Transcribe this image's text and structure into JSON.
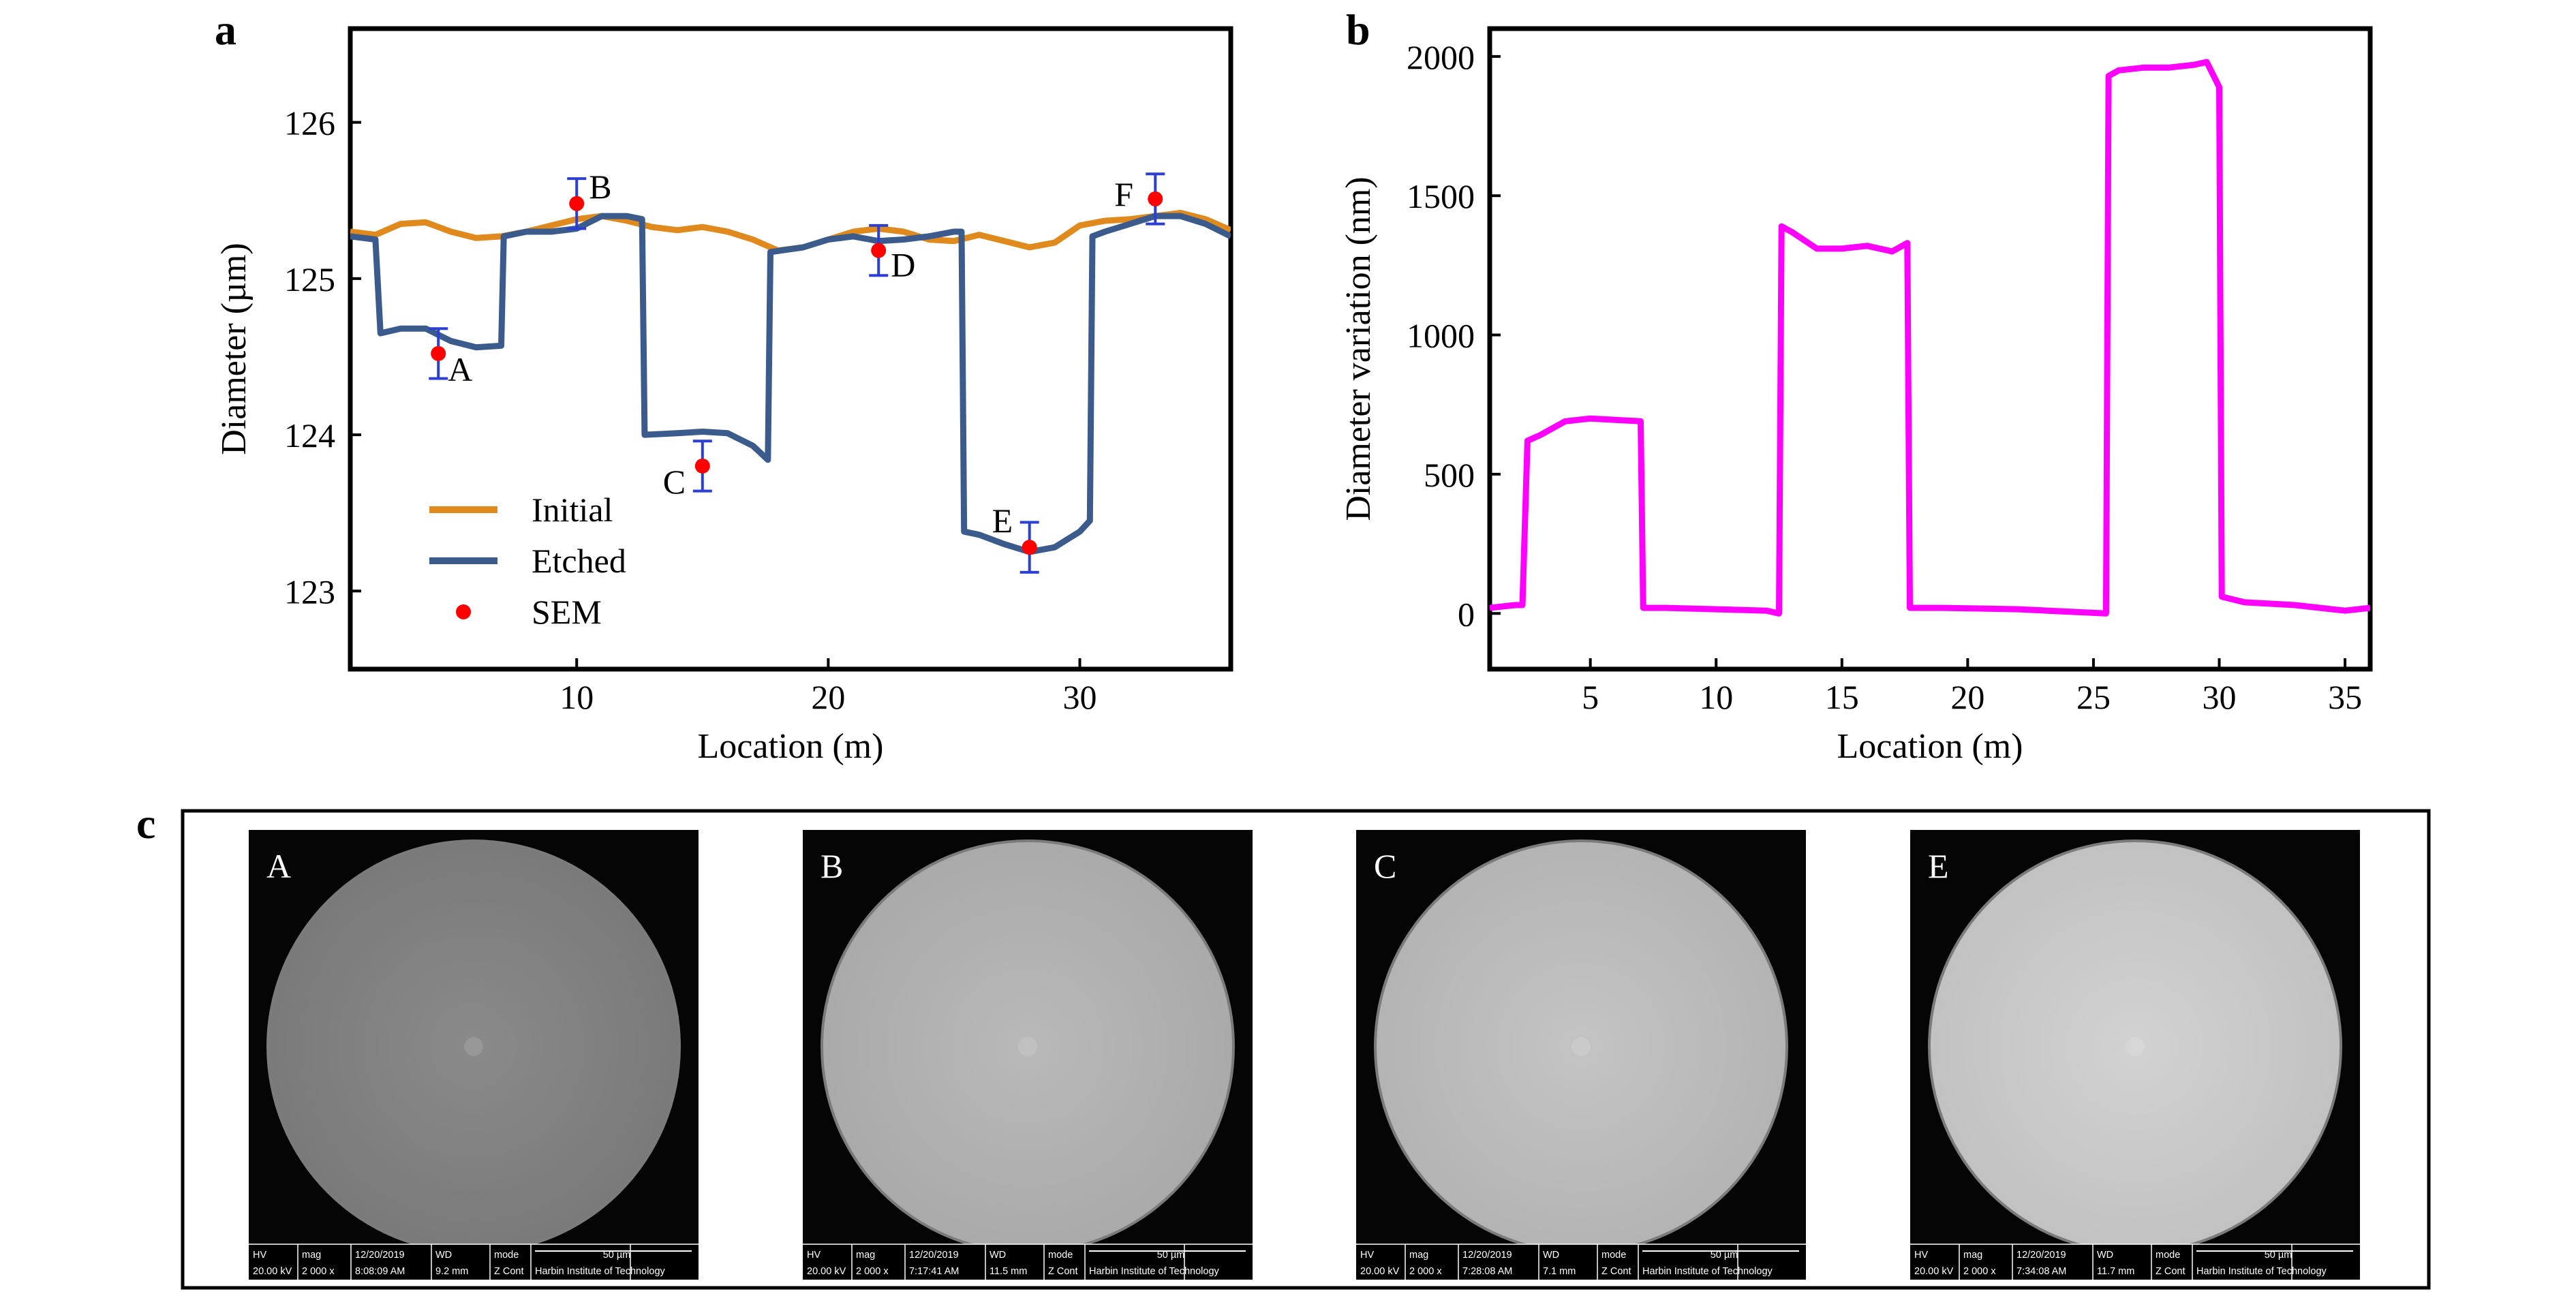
{
  "chart_data": [
    {
      "panel": "a",
      "type": "line",
      "xlabel": "Location (m)",
      "ylabel": "Diameter (µm)",
      "xlim": [
        1,
        36
      ],
      "ylim": [
        122.5,
        126.6
      ],
      "xticks": [
        10,
        20,
        30
      ],
      "yticks": [
        123,
        124,
        125,
        126
      ],
      "legend_position": "lower-left",
      "series": [
        {
          "name": "Initial",
          "color": "#E08A1E",
          "x": [
            1,
            2,
            3,
            4,
            5,
            6,
            7,
            8,
            9,
            10,
            11,
            12,
            13,
            14,
            15,
            16,
            17,
            18,
            19,
            20,
            21,
            22,
            23,
            24,
            25,
            26,
            27,
            28,
            29,
            30,
            31,
            32,
            33,
            34,
            35,
            36
          ],
          "y": [
            125.3,
            125.28,
            125.35,
            125.36,
            125.3,
            125.26,
            125.27,
            125.3,
            125.34,
            125.38,
            125.4,
            125.37,
            125.33,
            125.31,
            125.33,
            125.3,
            125.25,
            125.18,
            125.2,
            125.25,
            125.3,
            125.32,
            125.3,
            125.25,
            125.24,
            125.28,
            125.24,
            125.2,
            125.23,
            125.34,
            125.37,
            125.38,
            125.4,
            125.42,
            125.38,
            125.31
          ]
        },
        {
          "name": "Etched",
          "color": "#3A5B8C",
          "x": [
            1,
            2,
            2.2,
            3,
            4,
            5,
            6,
            7,
            7.1,
            8,
            9,
            10,
            11,
            12,
            12.6,
            12.7,
            14,
            15,
            16,
            17,
            17.6,
            17.7,
            19,
            20,
            21,
            22,
            23,
            24,
            25,
            25.3,
            25.4,
            26,
            27,
            28,
            29,
            30,
            30.4,
            30.5,
            31,
            32,
            33,
            34,
            35,
            36
          ],
          "y": [
            125.27,
            125.25,
            124.65,
            124.68,
            124.68,
            124.6,
            124.56,
            124.57,
            125.27,
            125.3,
            125.3,
            125.32,
            125.4,
            125.4,
            125.38,
            124,
            124.01,
            124.02,
            124.01,
            123.93,
            123.84,
            125.17,
            125.2,
            125.25,
            125.27,
            125.24,
            125.25,
            125.27,
            125.3,
            125.3,
            123.38,
            123.36,
            123.3,
            123.25,
            123.28,
            123.38,
            123.45,
            125.27,
            125.3,
            125.35,
            125.4,
            125.4,
            125.35,
            125.27
          ]
        },
        {
          "name": "SEM",
          "color": "#FF0000",
          "style": "points-with-errorbars",
          "points": [
            {
              "label": "A",
              "x": 4.5,
              "y": 124.52,
              "err": 0.16
            },
            {
              "label": "B",
              "x": 10,
              "y": 125.48,
              "err": 0.16
            },
            {
              "label": "C",
              "x": 15,
              "y": 123.8,
              "err": 0.16
            },
            {
              "label": "D",
              "x": 22,
              "y": 125.18,
              "err": 0.16
            },
            {
              "label": "E",
              "x": 28,
              "y": 123.28,
              "err": 0.16
            },
            {
              "label": "F",
              "x": 33,
              "y": 125.51,
              "err": 0.16
            }
          ]
        }
      ]
    },
    {
      "panel": "b",
      "type": "line",
      "xlabel": "Location (m)",
      "ylabel": "Diameter variation (nm)",
      "xlim": [
        1,
        36
      ],
      "ylim": [
        -200,
        2100
      ],
      "xticks": [
        5,
        10,
        15,
        20,
        25,
        30,
        35
      ],
      "yticks": [
        0,
        500,
        1000,
        1500,
        2000
      ],
      "series": [
        {
          "color": "#FF00FF",
          "x": [
            1,
            2,
            2.3,
            2.5,
            3,
            4,
            5,
            6,
            7,
            7.1,
            8,
            10,
            12,
            12.5,
            12.6,
            13,
            14,
            15,
            16,
            17,
            17.6,
            17.7,
            19,
            22,
            25.5,
            25.6,
            26,
            27,
            28,
            29,
            29.5,
            30,
            30.1,
            31,
            33,
            34,
            35,
            36
          ],
          "y": [
            20,
            30,
            30,
            620,
            640,
            690,
            700,
            695,
            690,
            20,
            20,
            15,
            10,
            0,
            1390,
            1370,
            1310,
            1310,
            1320,
            1300,
            1330,
            20,
            20,
            15,
            0,
            1930,
            1950,
            1960,
            1960,
            1970,
            1980,
            1890,
            60,
            40,
            30,
            20,
            10,
            20
          ]
        }
      ]
    }
  ],
  "panels": {
    "a": {
      "label": "a"
    },
    "b": {
      "label": "b"
    },
    "c": {
      "label": "c"
    }
  },
  "sem_images": [
    {
      "label": "A",
      "hv": "20.00 kV",
      "mag": "2 000 x",
      "date": "12/20/2019",
      "time": "8:08:09 AM",
      "wd": "9.2 mm",
      "mode": "Z Cont",
      "scale": "50 µm",
      "institute": "Harbin Institute of Technology"
    },
    {
      "label": "B",
      "hv": "20.00 kV",
      "mag": "2 000 x",
      "date": "12/20/2019",
      "time": "7:17:41 AM",
      "wd": "11.5 mm",
      "mode": "Z Cont",
      "scale": "50 µm",
      "institute": "Harbin Institute of Technology"
    },
    {
      "label": "C",
      "hv": "20.00 kV",
      "mag": "2 000 x",
      "date": "12/20/2019",
      "time": "7:28:08 AM",
      "wd": "7.1 mm",
      "mode": "Z Cont",
      "scale": "50 µm",
      "institute": "Harbin Institute of Technology"
    },
    {
      "label": "E",
      "hv": "20.00 kV",
      "mag": "2 000 x",
      "date": "12/20/2019",
      "time": "7:34:08 AM",
      "wd": "11.7 mm",
      "mode": "Z Cont",
      "scale": "50 µm",
      "institute": "Harbin Institute of Technology"
    }
  ],
  "sem_headers": {
    "hv": "HV",
    "mag": "mag",
    "date": "12/20/2019",
    "wd": "WD",
    "mode": "mode"
  }
}
